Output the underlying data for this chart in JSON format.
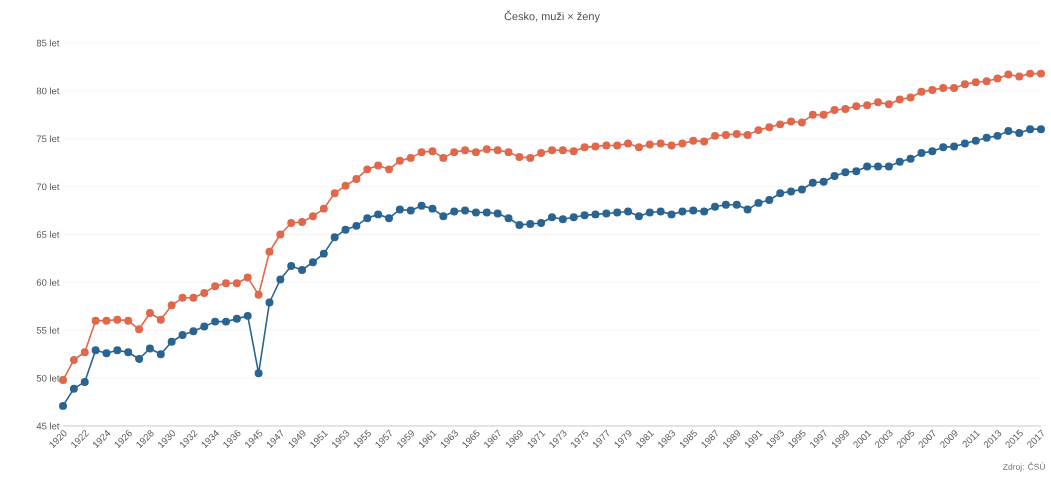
{
  "chart_data": {
    "type": "line",
    "title": "Česko, muži × ženy",
    "categories": [
      "1920",
      null,
      "1922",
      null,
      "1924",
      null,
      "1926",
      null,
      "1928",
      null,
      "1930",
      null,
      "1932",
      null,
      "1934",
      null,
      "1936",
      null,
      "1945",
      null,
      "1947",
      null,
      "1949",
      null,
      "1951",
      null,
      "1953",
      null,
      "1955",
      null,
      "1957",
      null,
      "1959",
      null,
      "1961",
      null,
      "1963",
      null,
      "1965",
      null,
      "1967",
      null,
      "1969",
      null,
      "1971",
      null,
      "1973",
      null,
      "1975",
      null,
      "1977",
      null,
      "1979",
      null,
      "1981",
      null,
      "1983",
      null,
      "1985",
      null,
      "1987",
      null,
      "1989",
      null,
      "1991",
      null,
      "1993",
      null,
      "1995",
      null,
      "1997",
      null,
      "1999",
      null,
      "2001",
      null,
      "2003",
      null,
      "2005",
      null,
      "2007",
      null,
      "2009",
      null,
      "2011",
      null,
      "2013",
      null,
      "2015",
      null,
      "2017"
    ],
    "series": [
      {
        "color": "#e0684b",
        "values": [
          49.8,
          51.9,
          52.7,
          56.0,
          56.0,
          56.1,
          56.0,
          55.1,
          56.8,
          56.1,
          57.6,
          58.4,
          58.4,
          58.9,
          59.6,
          59.9,
          59.9,
          60.5,
          58.7,
          63.2,
          65.0,
          66.2,
          66.3,
          66.9,
          67.7,
          69.3,
          70.1,
          70.8,
          71.8,
          72.2,
          71.8,
          72.7,
          73.0,
          73.6,
          73.7,
          73.0,
          73.6,
          73.8,
          73.6,
          73.9,
          73.8,
          73.6,
          73.1,
          73.0,
          73.5,
          73.8,
          73.8,
          73.7,
          74.1,
          74.2,
          74.3,
          74.3,
          74.5,
          74.1,
          74.4,
          74.5,
          74.3,
          74.5,
          74.8,
          74.7,
          75.3,
          75.4,
          75.5,
          75.4,
          75.9,
          76.2,
          76.5,
          76.8,
          76.7,
          77.5,
          77.5,
          78.0,
          78.1,
          78.4,
          78.5,
          78.8,
          78.6,
          79.1,
          79.3,
          79.9,
          80.1,
          80.3,
          80.3,
          80.7,
          80.9,
          81.0,
          81.3,
          81.7,
          81.5,
          81.8,
          81.8
        ]
      },
      {
        "color": "#2a6491",
        "values": [
          47.1,
          48.9,
          49.6,
          52.9,
          52.6,
          52.9,
          52.7,
          52.0,
          53.1,
          52.5,
          53.8,
          54.5,
          54.9,
          55.4,
          55.9,
          55.9,
          56.2,
          56.5,
          50.5,
          57.9,
          60.3,
          61.7,
          61.3,
          62.1,
          63.0,
          64.7,
          65.5,
          65.9,
          66.7,
          67.1,
          66.7,
          67.6,
          67.5,
          68.0,
          67.7,
          66.9,
          67.4,
          67.5,
          67.3,
          67.3,
          67.2,
          66.7,
          66.0,
          66.1,
          66.2,
          66.8,
          66.6,
          66.8,
          67.0,
          67.1,
          67.2,
          67.3,
          67.4,
          66.9,
          67.3,
          67.4,
          67.1,
          67.4,
          67.5,
          67.4,
          67.9,
          68.1,
          68.1,
          67.6,
          68.3,
          68.6,
          69.3,
          69.5,
          69.7,
          70.4,
          70.5,
          71.1,
          71.5,
          71.6,
          72.1,
          72.1,
          72.1,
          72.6,
          72.9,
          73.5,
          73.7,
          74.1,
          74.2,
          74.5,
          74.8,
          75.1,
          75.3,
          75.8,
          75.6,
          76.0,
          76.0
        ]
      }
    ],
    "ylim": [
      45,
      85
    ],
    "yticks": [
      {
        "value": 45,
        "label": "45 let"
      },
      {
        "value": 50,
        "label": "50 let"
      },
      {
        "value": 55,
        "label": "55 let"
      },
      {
        "value": 60,
        "label": "60 let"
      },
      {
        "value": 65,
        "label": "65 let"
      },
      {
        "value": 70,
        "label": "70 let"
      },
      {
        "value": 75,
        "label": "75 let"
      },
      {
        "value": 80,
        "label": "80 let"
      },
      {
        "value": 85,
        "label": "85 let"
      }
    ],
    "grid": "y",
    "marker": "circle",
    "line_style": "solid",
    "annotations": [
      "Zdroj: ČSÚ"
    ]
  }
}
